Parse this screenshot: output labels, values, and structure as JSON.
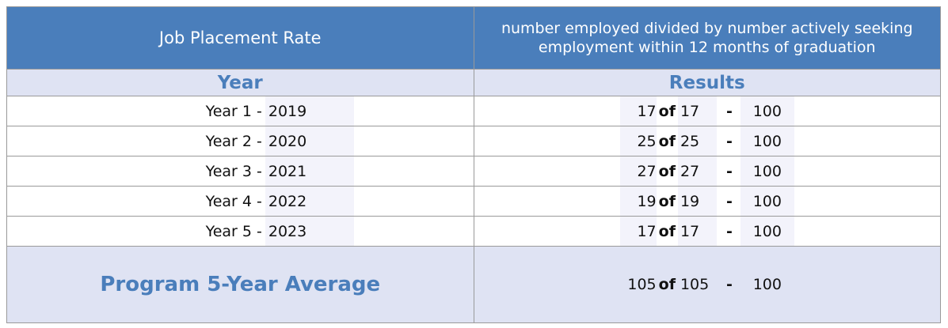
{
  "header": {
    "title": "Job Placement Rate",
    "description": "number employed divided by number actively seeking employment within 12 months of graduation"
  },
  "columns": [
    "Year",
    "Results"
  ],
  "rows": [
    {
      "label": "Year 1 -",
      "year": 2019,
      "employed": 17,
      "of": "of",
      "seeking": 17,
      "dash": "-",
      "rate": 100
    },
    {
      "label": "Year 2 -",
      "year": 2020,
      "employed": 25,
      "of": "of",
      "seeking": 25,
      "dash": "-",
      "rate": 100
    },
    {
      "label": "Year 3 -",
      "year": 2021,
      "employed": 27,
      "of": "of",
      "seeking": 27,
      "dash": "-",
      "rate": 100
    },
    {
      "label": "Year 4 -",
      "year": 2022,
      "employed": 19,
      "of": "of",
      "seeking": 19,
      "dash": "-",
      "rate": 100
    },
    {
      "label": "Year 5 -",
      "year": 2023,
      "employed": 17,
      "of": "of",
      "seeking": 17,
      "dash": "-",
      "rate": 100
    }
  ],
  "average": {
    "label": "Program 5-Year Average",
    "employed": 105,
    "of": "of",
    "seeking": 105,
    "dash": "-",
    "rate": 100
  }
}
